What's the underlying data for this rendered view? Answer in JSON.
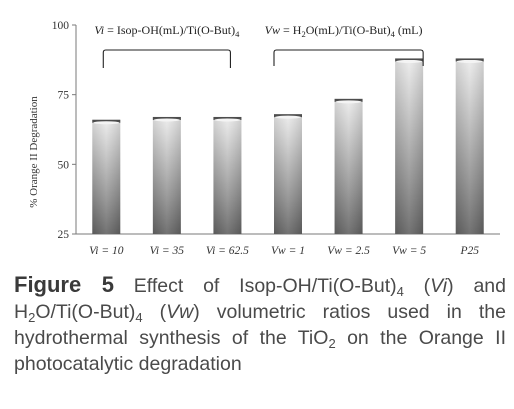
{
  "chart_data": {
    "type": "bar",
    "ylabel": "% Orange II Degradation",
    "ylim": [
      25,
      100
    ],
    "yticks": [
      "25",
      "50",
      "75",
      "100"
    ],
    "categories": [
      "Vi = 10",
      "Vi = 35",
      "Vi = 62.5",
      "Vw = 1",
      "Vw = 2.5",
      "Vw = 5",
      "P25"
    ],
    "values": [
      66,
      67,
      67,
      68,
      73.5,
      88,
      88
    ],
    "grid": false,
    "group_labels": [
      {
        "label": "Vi = Isop-OH(mL)/Ti(O-But)4",
        "categories": [
          "Vi = 10",
          "Vi = 35",
          "Vi = 62.5"
        ]
      },
      {
        "label": "Vw = H2O(mL)/Ti(O-But)4 (mL)",
        "categories": [
          "Vw = 1",
          "Vw = 2.5",
          "Vw = 5"
        ]
      }
    ]
  },
  "caption": {
    "figure_label": "Figure 5",
    "t1": " Effect of Isop-OH/Ti(O-But)",
    "s1": "4",
    "t2": " (",
    "i1": "Vi",
    "t3": ") and H",
    "s2": "2",
    "t4": "O/Ti(O-But)",
    "s3": "4",
    "t5": " (",
    "i2": "Vw",
    "t6": ") volumetric ratios used in the hydrothermal synthesis of the TiO",
    "s4": "2",
    "t7": " on the Orange II photocatalytic degradation"
  }
}
